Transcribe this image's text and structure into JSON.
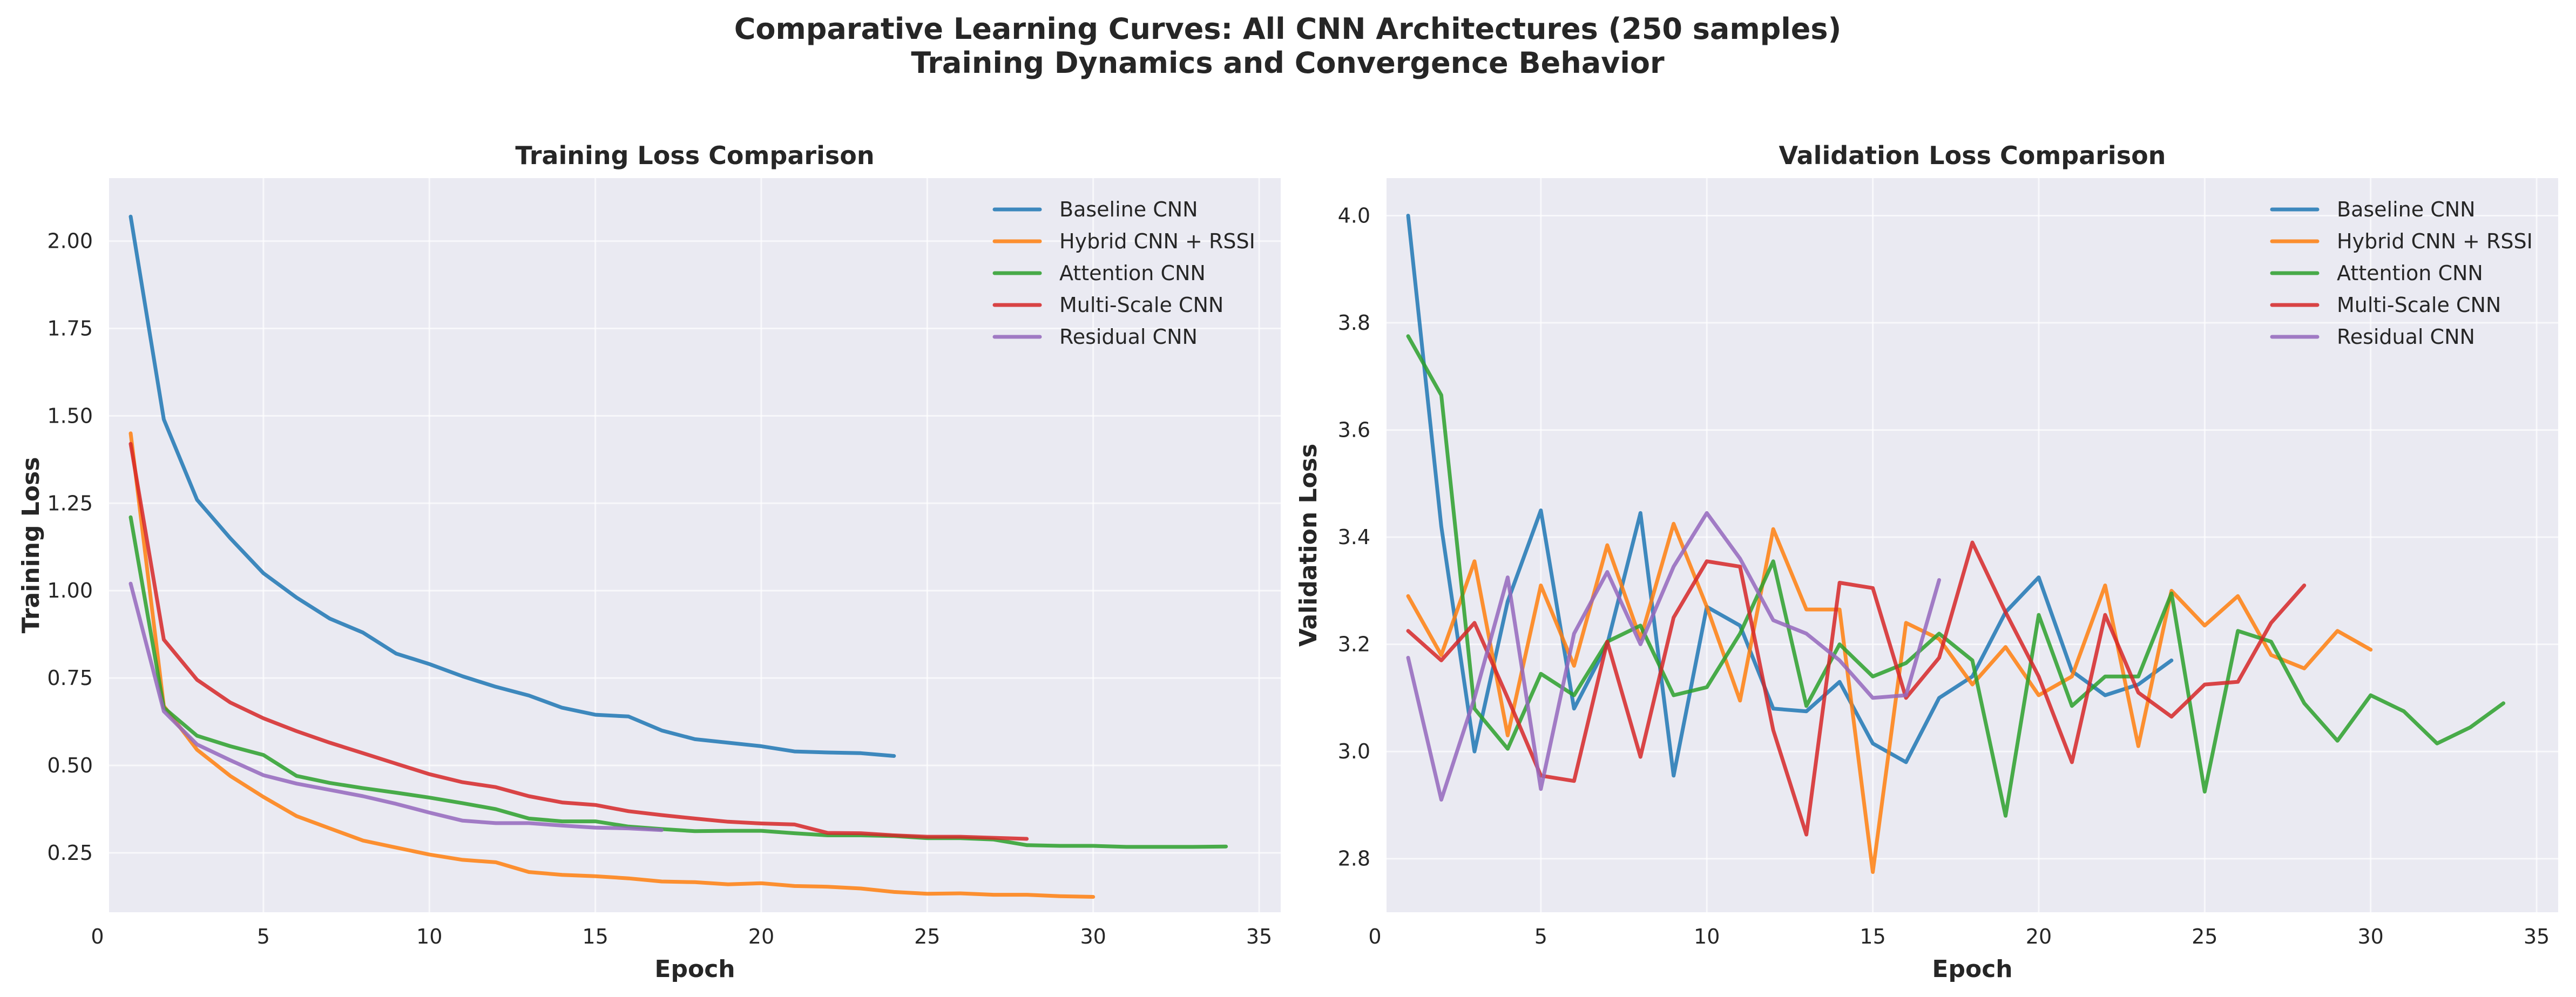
{
  "figure": {
    "title_line1": "Comparative Learning Curves: All CNN Architectures (250 samples)",
    "title_line2": "Training Dynamics and Convergence Behavior"
  },
  "colors": {
    "Baseline CNN": "#1f77b4",
    "Hybrid CNN + RSSI": "#ff7f0e",
    "Attention CNN": "#2ca02c",
    "Multi-Scale CNN": "#d62728",
    "Residual CNN": "#9467bd"
  },
  "chart_data": [
    {
      "type": "line",
      "title": "Training Loss Comparison",
      "xlabel": "Epoch",
      "ylabel": "Training Loss",
      "xlim": [
        0.35,
        35.65
      ],
      "ylim": [
        0.08,
        2.18
      ],
      "xticks": [
        "0",
        "5",
        "10",
        "15",
        "20",
        "25",
        "30",
        "35"
      ],
      "yticks": [
        "0.25",
        "0.50",
        "0.75",
        "1.00",
        "1.25",
        "1.50",
        "1.75",
        "2.00"
      ],
      "grid": true,
      "legend_position": "upper-right",
      "series": [
        {
          "name": "Baseline CNN",
          "x_start": 1,
          "values": [
            2.07,
            1.49,
            1.26,
            1.15,
            1.05,
            0.98,
            0.92,
            0.88,
            0.82,
            0.79,
            0.755,
            0.725,
            0.7,
            0.665,
            0.645,
            0.64,
            0.6,
            0.575,
            0.565,
            0.555,
            0.54,
            0.537,
            0.535,
            0.527
          ]
        },
        {
          "name": "Hybrid CNN + RSSI",
          "x_start": 1,
          "values": [
            1.45,
            0.67,
            0.545,
            0.47,
            0.41,
            0.355,
            0.32,
            0.285,
            0.265,
            0.245,
            0.23,
            0.223,
            0.195,
            0.187,
            0.183,
            0.177,
            0.168,
            0.166,
            0.16,
            0.163,
            0.155,
            0.153,
            0.148,
            0.138,
            0.133,
            0.134,
            0.13,
            0.13,
            0.126,
            0.124
          ]
        },
        {
          "name": "Attention CNN",
          "x_start": 1,
          "values": [
            1.21,
            0.665,
            0.585,
            0.555,
            0.53,
            0.47,
            0.45,
            0.435,
            0.422,
            0.408,
            0.392,
            0.375,
            0.348,
            0.34,
            0.34,
            0.325,
            0.318,
            0.312,
            0.313,
            0.313,
            0.306,
            0.3,
            0.3,
            0.298,
            0.292,
            0.292,
            0.288,
            0.272,
            0.27,
            0.27,
            0.267,
            0.267,
            0.267,
            0.268
          ]
        },
        {
          "name": "Multi-Scale CNN",
          "x_start": 1,
          "values": [
            1.42,
            0.86,
            0.745,
            0.68,
            0.635,
            0.598,
            0.565,
            0.535,
            0.505,
            0.475,
            0.452,
            0.438,
            0.412,
            0.394,
            0.387,
            0.369,
            0.358,
            0.348,
            0.339,
            0.334,
            0.331,
            0.307,
            0.306,
            0.3,
            0.296,
            0.296,
            0.293,
            0.29
          ]
        },
        {
          "name": "Residual CNN",
          "x_start": 1,
          "values": [
            1.02,
            0.655,
            0.56,
            0.515,
            0.472,
            0.448,
            0.43,
            0.412,
            0.39,
            0.365,
            0.342,
            0.335,
            0.335,
            0.328,
            0.322,
            0.32,
            0.315
          ]
        }
      ]
    },
    {
      "type": "line",
      "title": "Validation Loss Comparison",
      "xlabel": "Epoch",
      "ylabel": "Validation Loss",
      "xlim": [
        0.35,
        35.65
      ],
      "ylim": [
        2.7,
        4.07
      ],
      "xticks": [
        "0",
        "5",
        "10",
        "15",
        "20",
        "25",
        "30",
        "35"
      ],
      "yticks": [
        "2.8",
        "3.0",
        "3.2",
        "3.4",
        "3.6",
        "3.8",
        "4.0"
      ],
      "grid": true,
      "legend_position": "upper-right",
      "series": [
        {
          "name": "Baseline CNN",
          "x_start": 1,
          "values": [
            4.0,
            3.42,
            3.0,
            3.28,
            3.45,
            3.08,
            3.2,
            3.445,
            2.955,
            3.27,
            3.235,
            3.08,
            3.075,
            3.13,
            3.015,
            2.98,
            3.1,
            3.14,
            3.26,
            3.325,
            3.15,
            3.105,
            3.125,
            3.17
          ]
        },
        {
          "name": "Hybrid CNN + RSSI",
          "x_start": 1,
          "values": [
            3.29,
            3.18,
            3.355,
            3.03,
            3.31,
            3.16,
            3.385,
            3.21,
            3.425,
            3.27,
            3.095,
            3.415,
            3.265,
            3.265,
            2.775,
            3.24,
            3.21,
            3.125,
            3.195,
            3.105,
            3.14,
            3.31,
            3.01,
            3.3,
            3.235,
            3.29,
            3.18,
            3.155,
            3.225,
            3.19
          ]
        },
        {
          "name": "Attention CNN",
          "x_start": 1,
          "values": [
            3.775,
            3.665,
            3.08,
            3.005,
            3.145,
            3.105,
            3.205,
            3.235,
            3.105,
            3.12,
            3.22,
            3.355,
            3.085,
            3.2,
            3.14,
            3.165,
            3.22,
            3.17,
            2.88,
            3.255,
            3.085,
            3.14,
            3.14,
            3.295,
            2.925,
            3.225,
            3.205,
            3.09,
            3.02,
            3.105,
            3.075,
            3.015,
            3.045,
            3.09
          ]
        },
        {
          "name": "Multi-Scale CNN",
          "x_start": 1,
          "values": [
            3.225,
            3.17,
            3.24,
            3.1,
            2.955,
            2.945,
            3.205,
            2.99,
            3.25,
            3.355,
            3.345,
            3.04,
            2.845,
            3.315,
            3.305,
            3.1,
            3.175,
            3.39,
            3.26,
            3.14,
            2.98,
            3.255,
            3.11,
            3.065,
            3.125,
            3.13,
            3.24,
            3.31
          ]
        },
        {
          "name": "Residual CNN",
          "x_start": 1,
          "values": [
            3.175,
            2.91,
            3.1,
            3.325,
            2.93,
            3.22,
            3.335,
            3.2,
            3.345,
            3.445,
            3.36,
            3.245,
            3.22,
            3.17,
            3.1,
            3.105,
            3.32
          ]
        }
      ]
    }
  ]
}
